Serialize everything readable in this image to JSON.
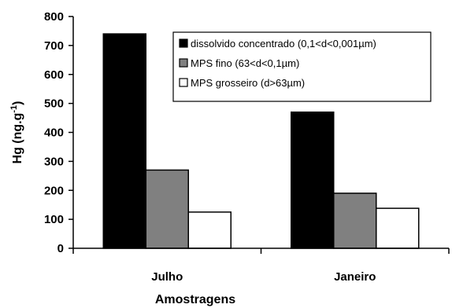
{
  "chart_data": {
    "type": "bar",
    "categories": [
      "Julho",
      "Janeiro"
    ],
    "series": [
      {
        "name": "dissolvido concentrado (0,1<d<0,001µm)",
        "values": [
          740,
          470
        ],
        "color": "#000000"
      },
      {
        "name": "MPS fino (63<d<0,1µm)",
        "values": [
          270,
          190
        ],
        "color": "#808080"
      },
      {
        "name": "MPS grosseiro (d>63µm)",
        "values": [
          125,
          138
        ],
        "color": "#ffffff"
      }
    ],
    "ylabel": "Hg (ng.g-1)",
    "xlabel": "Amostragens",
    "ylim": [
      0,
      800
    ],
    "yticks": [
      0,
      100,
      200,
      300,
      400,
      500,
      600,
      700,
      800
    ],
    "grid": false,
    "legend_position": "top-right"
  }
}
